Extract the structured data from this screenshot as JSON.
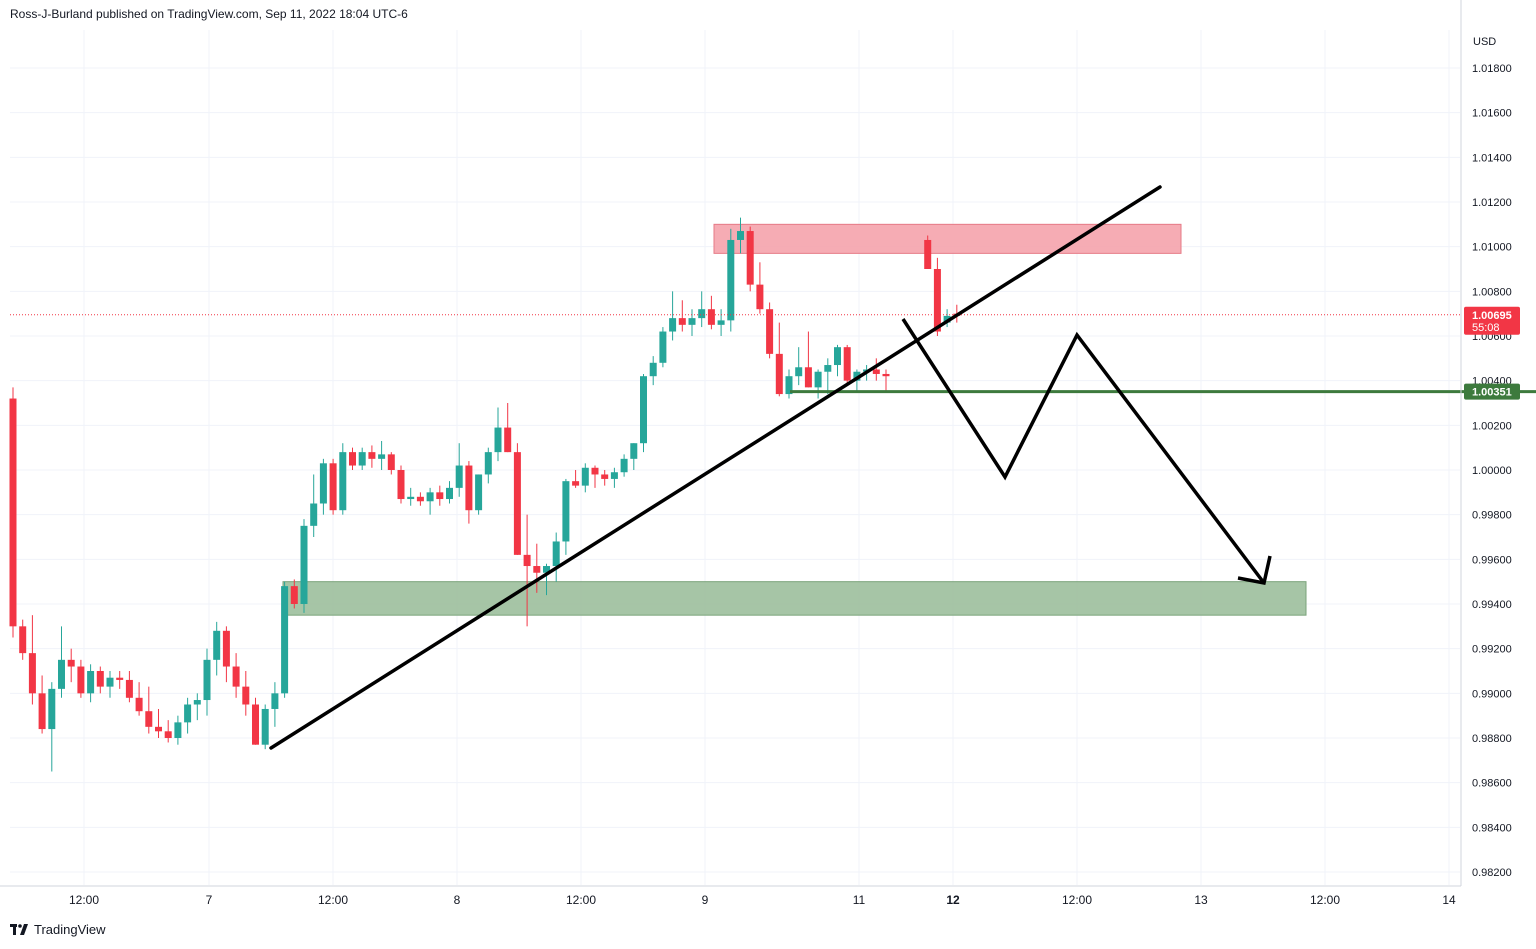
{
  "header": {
    "publisher_text": "Ross-J-Burland published on TradingView.com, Sep 11, 2022 18:04 UTC-6"
  },
  "branding": {
    "logo_text": "TradingView"
  },
  "colors": {
    "bull": "#26a69a",
    "bear": "#f23645",
    "grid": "#f0f3fa",
    "resistance_zone": "#f5a3ac",
    "support_zone": "#9cbf9c",
    "support_line": "#3d7a3d",
    "current_price": "#f23645",
    "drawing": "#000000"
  },
  "chart_data": {
    "type": "candlestick",
    "symbol_currency": "USD",
    "y_axis": {
      "ticks": [
        "1.01800",
        "1.01600",
        "1.01400",
        "1.01200",
        "1.01000",
        "1.00800",
        "1.00600",
        "1.00400",
        "1.00200",
        "1.00000",
        "0.99800",
        "0.99600",
        "0.99400",
        "0.99200",
        "0.99000",
        "0.98800",
        "0.98600",
        "0.98400",
        "0.98200"
      ],
      "ylim": [
        0.9818,
        1.0195
      ]
    },
    "x_axis": {
      "ticks": [
        {
          "label": "12:00",
          "bold": false
        },
        {
          "label": "7",
          "bold": false
        },
        {
          "label": "12:00",
          "bold": false
        },
        {
          "label": "8",
          "bold": false
        },
        {
          "label": "12:00",
          "bold": false
        },
        {
          "label": "9",
          "bold": false
        },
        {
          "label": "11",
          "bold": false
        },
        {
          "label": "12",
          "bold": true
        },
        {
          "label": "12:00",
          "bold": false
        },
        {
          "label": "13",
          "bold": false
        },
        {
          "label": "12:00",
          "bold": false
        },
        {
          "label": "14",
          "bold": false
        }
      ]
    },
    "current_price": {
      "value": 1.00695,
      "label": "1.00695",
      "countdown": "55:08"
    },
    "support_level": {
      "value": 1.00351,
      "label": "1.00351"
    },
    "zones": [
      {
        "name": "resistance-zone",
        "top": 1.011,
        "bottom": 1.0097
      },
      {
        "name": "support-zone",
        "top": 0.995,
        "bottom": 0.9935
      }
    ],
    "candles": [
      [
        1.0032,
        1.0037,
        0.9925,
        0.993
      ],
      [
        0.993,
        0.9933,
        0.9915,
        0.9918
      ],
      [
        0.9918,
        0.9935,
        0.9895,
        0.99
      ],
      [
        0.99,
        0.9908,
        0.9882,
        0.9884
      ],
      [
        0.9884,
        0.9905,
        0.9865,
        0.9902
      ],
      [
        0.9902,
        0.993,
        0.9898,
        0.9915
      ],
      [
        0.9915,
        0.992,
        0.9905,
        0.9912
      ],
      [
        0.9912,
        0.9915,
        0.9898,
        0.99
      ],
      [
        0.99,
        0.9913,
        0.9896,
        0.991
      ],
      [
        0.991,
        0.9912,
        0.99,
        0.9903
      ],
      [
        0.9903,
        0.991,
        0.9898,
        0.9907
      ],
      [
        0.9907,
        0.991,
        0.9902,
        0.9906
      ],
      [
        0.9906,
        0.991,
        0.9896,
        0.9898
      ],
      [
        0.9898,
        0.9905,
        0.989,
        0.9892
      ],
      [
        0.9892,
        0.9903,
        0.9882,
        0.9885
      ],
      [
        0.9885,
        0.9893,
        0.988,
        0.9883
      ],
      [
        0.9883,
        0.9888,
        0.9878,
        0.988
      ],
      [
        0.988,
        0.989,
        0.9877,
        0.9887
      ],
      [
        0.9887,
        0.9898,
        0.9882,
        0.9895
      ],
      [
        0.9895,
        0.99,
        0.9888,
        0.9897
      ],
      [
        0.9897,
        0.992,
        0.989,
        0.9915
      ],
      [
        0.9915,
        0.9932,
        0.9908,
        0.9928
      ],
      [
        0.9928,
        0.993,
        0.9905,
        0.9912
      ],
      [
        0.9912,
        0.9918,
        0.9898,
        0.9903
      ],
      [
        0.9903,
        0.991,
        0.989,
        0.9895
      ],
      [
        0.9895,
        0.9898,
        0.9877,
        0.9877
      ],
      [
        0.9877,
        0.9895,
        0.9875,
        0.9893
      ],
      [
        0.9893,
        0.9905,
        0.9885,
        0.99
      ],
      [
        0.99,
        0.995,
        0.9898,
        0.9948
      ],
      [
        0.9948,
        0.9951,
        0.9938,
        0.994
      ],
      [
        0.994,
        0.9978,
        0.9936,
        0.9975
      ],
      [
        0.9975,
        0.9998,
        0.997,
        0.9985
      ],
      [
        0.9985,
        1.0005,
        0.998,
        1.0003
      ],
      [
        1.0003,
        1.0005,
        0.998,
        0.9982
      ],
      [
        0.9982,
        1.0012,
        0.998,
        1.0008
      ],
      [
        1.0008,
        1.001,
        1.0,
        1.0002
      ],
      [
        1.0002,
        1.001,
        1.0,
        1.0008
      ],
      [
        1.0008,
        1.0011,
        1.0001,
        1.0005
      ],
      [
        1.0005,
        1.0013,
        1.0,
        1.0007
      ],
      [
        1.0007,
        1.0008,
        0.9998,
        1.0
      ],
      [
        1.0,
        1.0002,
        0.9985,
        0.9987
      ],
      [
        0.9987,
        0.9992,
        0.9984,
        0.9988
      ],
      [
        0.9988,
        0.999,
        0.9984,
        0.9986
      ],
      [
        0.9986,
        0.9992,
        0.998,
        0.999
      ],
      [
        0.999,
        0.9993,
        0.9984,
        0.9987
      ],
      [
        0.9987,
        0.9995,
        0.9985,
        0.9992
      ],
      [
        0.9992,
        1.0012,
        0.9988,
        1.0002
      ],
      [
        1.0002,
        1.0004,
        0.9976,
        0.9982
      ],
      [
        0.9982,
        0.9998,
        0.998,
        0.9998
      ],
      [
        0.9998,
        1.001,
        0.9994,
        1.0008
      ],
      [
        1.0008,
        1.0028,
        1.0004,
        1.0019
      ],
      [
        1.0019,
        1.003,
        1.0008,
        1.0008
      ],
      [
        1.0008,
        1.0012,
        0.9962,
        0.9962
      ],
      [
        0.9962,
        0.998,
        0.993,
        0.9957
      ],
      [
        0.9957,
        0.9967,
        0.9945,
        0.9954
      ],
      [
        0.9954,
        0.9958,
        0.9944,
        0.9957
      ],
      [
        0.9957,
        0.9972,
        0.995,
        0.9968
      ],
      [
        0.9968,
        0.9996,
        0.9962,
        0.9995
      ],
      [
        0.9995,
        1.0,
        0.9992,
        0.9993
      ],
      [
        0.9993,
        1.0003,
        0.999,
        1.0001
      ],
      [
        1.0001,
        1.0002,
        0.9992,
        0.9998
      ],
      [
        0.9998,
        1.0,
        0.9993,
        0.9996
      ],
      [
        0.9996,
        1.0001,
        0.9992,
        0.9999
      ],
      [
        0.9999,
        1.0007,
        0.9997,
        1.0005
      ],
      [
        1.0005,
        1.0012,
        1.0,
        1.0012
      ],
      [
        1.0012,
        1.0043,
        1.0008,
        1.0042
      ],
      [
        1.0042,
        1.0051,
        1.0038,
        1.0048
      ],
      [
        1.0048,
        1.0064,
        1.0046,
        1.0062
      ],
      [
        1.0062,
        1.008,
        1.0058,
        1.0068
      ],
      [
        1.0068,
        1.0076,
        1.0062,
        1.0065
      ],
      [
        1.0065,
        1.0072,
        1.006,
        1.0068
      ],
      [
        1.0068,
        1.008,
        1.0064,
        1.0072
      ],
      [
        1.0072,
        1.0078,
        1.0063,
        1.0065
      ],
      [
        1.0065,
        1.0072,
        1.006,
        1.0067
      ],
      [
        1.0067,
        1.0108,
        1.0062,
        1.0103
      ],
      [
        1.0103,
        1.0113,
        1.0097,
        1.0107
      ],
      [
        1.0107,
        1.0109,
        1.008,
        1.0083
      ],
      [
        1.0083,
        1.0093,
        1.007,
        1.0072
      ],
      [
        1.0072,
        1.0075,
        1.005,
        1.0052
      ],
      [
        1.0052,
        1.0066,
        1.0033,
        1.0034
      ],
      [
        1.0034,
        1.0045,
        1.0032,
        1.0042
      ],
      [
        1.0042,
        1.0055,
        1.0038,
        1.0046
      ],
      [
        1.0046,
        1.0062,
        1.0037,
        1.0037
      ],
      [
        1.0037,
        1.0045,
        1.0032,
        1.0044
      ],
      [
        1.0044,
        1.005,
        1.0034,
        1.0047
      ],
      [
        1.0047,
        1.0056,
        1.0042,
        1.0055
      ],
      [
        1.0055,
        1.0056,
        1.0038,
        1.004
      ],
      [
        1.004,
        1.0045,
        1.0035,
        1.0044
      ],
      [
        1.0044,
        1.0047,
        1.004,
        1.0045
      ],
      [
        1.0045,
        1.005,
        1.004,
        1.0043
      ],
      [
        1.0043,
        1.0045,
        1.0035,
        1.0042
      ],
      [
        1.0103,
        1.0105,
        1.009,
        1.009
      ],
      [
        1.009,
        1.0095,
        1.006,
        1.0062
      ],
      [
        1.0066,
        1.0072,
        1.0064,
        1.0069
      ],
      [
        1.007,
        1.0074,
        1.0066,
        1.0069
      ]
    ]
  }
}
